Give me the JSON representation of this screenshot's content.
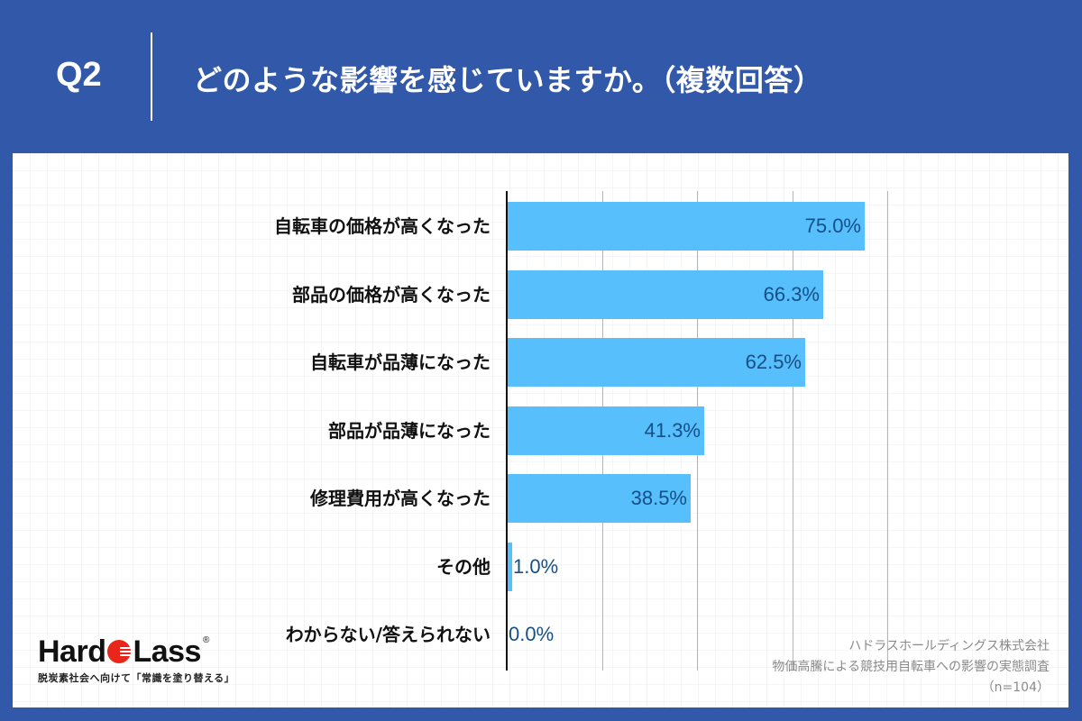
{
  "header": {
    "question_number": "Q2",
    "question_text": "どのような影響を感じていますか。（複数回答）"
  },
  "colors": {
    "background": "#3259a9",
    "bar": "#56bffc",
    "value_text": "#174f86",
    "label_text": "#111111"
  },
  "chart_data": {
    "type": "bar",
    "orientation": "horizontal",
    "title": "どのような影響を感じていますか。（複数回答）",
    "categories": [
      "自転車の価格が高くなった",
      "部品の価格が高くなった",
      "自転車が品薄になった",
      "部品が品薄になった",
      "修理費用が高くなった",
      "その他",
      "わからない/答えられない"
    ],
    "values": [
      75.0,
      66.3,
      62.5,
      41.3,
      38.5,
      1.0,
      0.0
    ],
    "value_labels": [
      "75.0%",
      "66.3%",
      "62.5%",
      "41.3%",
      "38.5%",
      "1.0%",
      "0.0%"
    ],
    "unit": "%",
    "xlim": [
      0,
      80
    ],
    "grid_ticks": [
      0,
      20,
      40,
      60,
      80
    ],
    "grid": true,
    "legend": false,
    "xlabel": "",
    "ylabel": ""
  },
  "logo": {
    "brand_left": "Hard",
    "brand_right": "Lass",
    "registered": "®",
    "tagline": "脱炭素社会へ向けて「常識を塗り替える」"
  },
  "source": {
    "company": "ハドラスホールディングス株式会社",
    "survey": "物価高騰による競技用自転車への影響の実態調査",
    "sample": "（n=104）"
  }
}
